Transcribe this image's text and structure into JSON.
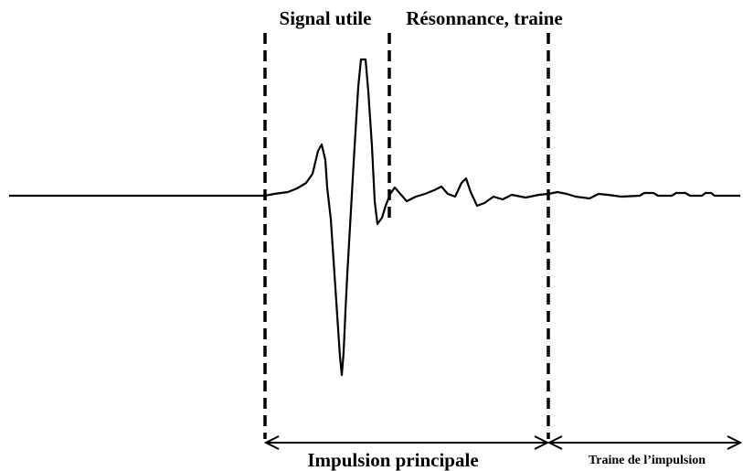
{
  "labels": {
    "signal": "Signal utile",
    "resonance": "Résonnance, traine",
    "main_pulse": "Impulsion principale",
    "pulse_tail": "Traine de l’impulsion"
  }
}
